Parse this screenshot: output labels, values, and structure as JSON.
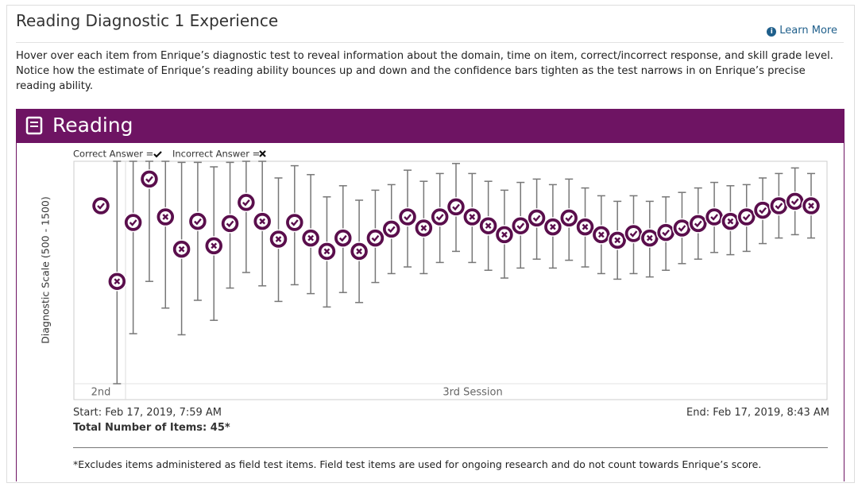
{
  "header": {
    "title": "Reading Diagnostic 1 Experience",
    "link": "Learn More"
  },
  "description": "Hover over each item from Enrique’s diagnostic test to reveal information about the domain, time on item, correct/incorrect response, and skill grade level. Notice how the estimate of Enrique’s reading ability bounces up and down and the confidence bars tighten as the test narrows in on Enrique’s precise reading ability.",
  "panel_title": "Reading",
  "chart_data": {
    "type": "errorbar",
    "y_label": "Diagnostic Scale  (500 - 1500)",
    "legend": {
      "correct": "Correct Answer =",
      "incorrect": "Incorrect Answer ="
    },
    "ylim": [
      500,
      1500
    ],
    "sessions": [
      "2nd",
      "3rd Session"
    ],
    "values": [
      1300,
      960,
      1225,
      1420,
      1250,
      1105,
      1230,
      1120,
      1220,
      1315,
      1230,
      1150,
      1225,
      1155,
      1095,
      1155,
      1095,
      1155,
      1195,
      1250,
      1200,
      1250,
      1295,
      1250,
      1210,
      1170,
      1210,
      1245,
      1205,
      1245,
      1205,
      1170,
      1145,
      1175,
      1155,
      1180,
      1200,
      1220,
      1250,
      1230,
      1250,
      1280,
      1300,
      1320,
      1300
    ],
    "low": [
      null,
      500,
      725,
      960,
      840,
      720,
      875,
      785,
      930,
      1000,
      940,
      870,
      945,
      905,
      845,
      910,
      865,
      955,
      995,
      1025,
      995,
      1045,
      1095,
      1045,
      1010,
      975,
      1020,
      1060,
      1020,
      1055,
      1025,
      995,
      970,
      995,
      980,
      1010,
      1040,
      1060,
      1090,
      1080,
      1095,
      1130,
      1155,
      1170,
      1155
    ],
    "high": [
      null,
      1500,
      1500,
      1500,
      1500,
      1495,
      1495,
      1475,
      1495,
      1500,
      1500,
      1425,
      1480,
      1440,
      1340,
      1390,
      1325,
      1370,
      1395,
      1460,
      1410,
      1445,
      1490,
      1445,
      1410,
      1370,
      1405,
      1420,
      1395,
      1420,
      1380,
      1345,
      1320,
      1345,
      1320,
      1340,
      1360,
      1380,
      1405,
      1390,
      1395,
      1425,
      1445,
      1470,
      1445
    ],
    "correct": [
      true,
      false,
      true,
      true,
      false,
      false,
      true,
      false,
      true,
      true,
      false,
      false,
      true,
      false,
      false,
      true,
      false,
      true,
      true,
      true,
      false,
      true,
      true,
      false,
      false,
      false,
      true,
      true,
      false,
      true,
      false,
      false,
      false,
      true,
      false,
      true,
      true,
      true,
      true,
      false,
      true,
      true,
      true,
      true,
      false
    ],
    "marker_color": "#5a0e4c",
    "bar_color": "#777777"
  },
  "summary": {
    "start": "Start: Feb 17, 2019, 7:59 AM",
    "total_items": "Total Number of Items: 45*",
    "end": "End: Feb 17, 2019, 8:43 AM"
  },
  "footnote": "*Excludes items administered as field test items. Field test items are used for ongoing research and do not count towards Enrique’s score."
}
